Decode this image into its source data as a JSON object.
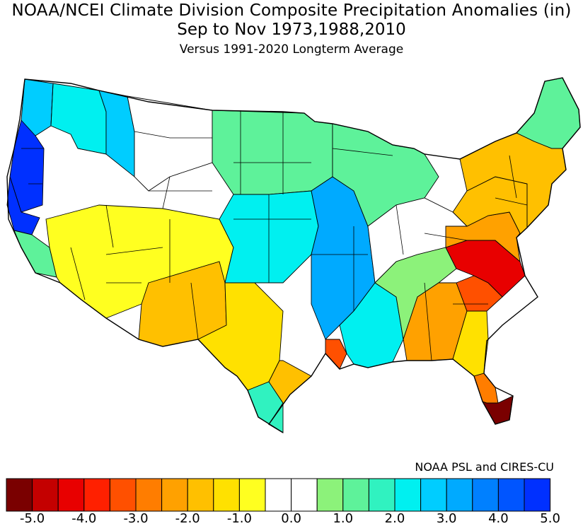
{
  "header": {
    "title": "NOAA/NCEI Climate Division Composite Precipitation Anomalies (in)",
    "subtitle": "Sep to Nov  1973,1988,2010",
    "baseline": "Versus 1991-2020 Longterm Average"
  },
  "credit": "NOAA PSL and CIRES-CU",
  "legend": {
    "unit": "in",
    "bins": [
      -5.5,
      -5.0,
      -4.5,
      -4.0,
      -3.5,
      -3.0,
      -2.5,
      -2.0,
      -1.5,
      -1.0,
      -0.5,
      0.0,
      0.5,
      1.0,
      1.5,
      2.0,
      2.5,
      3.0,
      3.5,
      4.0,
      4.5,
      5.0
    ],
    "colors": [
      "#7a0000",
      "#c40000",
      "#e80000",
      "#ff2000",
      "#ff5000",
      "#ff7d00",
      "#ffa100",
      "#ffc000",
      "#ffe100",
      "#ffff20",
      "#ffffff",
      "#ffffff",
      "#8cf27a",
      "#5ef29a",
      "#30f2c0",
      "#00f0f0",
      "#00cdff",
      "#00aaff",
      "#0080ff",
      "#0055ff",
      "#0030ff"
    ],
    "tick_labels": [
      "-5.0",
      "-4.0",
      "-3.0",
      "-2.0",
      "-1.0",
      "0.0",
      "1.0",
      "2.0",
      "3.0",
      "4.0",
      "5.0"
    ]
  },
  "regional_anomalies": [
    {
      "region": "Washington Coast",
      "anomaly": 2.5
    },
    {
      "region": "Oregon Coast",
      "anomaly": 5.0
    },
    {
      "region": "Northern California Coast",
      "anomaly": 4.5
    },
    {
      "region": "Sacramento Valley",
      "anomaly": 1.0
    },
    {
      "region": "Eastern Washington",
      "anomaly": 2.0
    },
    {
      "region": "Northern Idaho",
      "anomaly": 2.5
    },
    {
      "region": "Northern Rockies Montana",
      "anomaly": 0.0
    },
    {
      "region": "Southwest Desert",
      "anomaly": -1.0
    },
    {
      "region": "New Mexico",
      "anomaly": -2.0
    },
    {
      "region": "West Texas",
      "anomaly": -1.5
    },
    {
      "region": "South Texas",
      "anomaly": 1.5
    },
    {
      "region": "Upper Texas Coast",
      "anomaly": -2.0
    },
    {
      "region": "Louisiana",
      "anomaly": -3.5
    },
    {
      "region": "Northern Plains",
      "anomaly": 1.0
    },
    {
      "region": "Kansas Oklahoma",
      "anomaly": 2.0
    },
    {
      "region": "Arkansas Missouri",
      "anomaly": 3.0
    },
    {
      "region": "Mississippi Valley",
      "anomaly": 2.0
    },
    {
      "region": "Great Lakes",
      "anomaly": 1.0
    },
    {
      "region": "Ohio Valley",
      "anomaly": -0.5
    },
    {
      "region": "Appalachians",
      "anomaly": 0.5
    },
    {
      "region": "Georgia",
      "anomaly": -2.5
    },
    {
      "region": "South Carolina",
      "anomaly": -3.5
    },
    {
      "region": "North Carolina",
      "anomaly": -4.5
    },
    {
      "region": "Virginia",
      "anomaly": -2.5
    },
    {
      "region": "Mid-Atlantic",
      "anomaly": -2.0
    },
    {
      "region": "New England",
      "anomaly": -2.0
    },
    {
      "region": "North Florida",
      "anomaly": -1.5
    },
    {
      "region": "Central Florida",
      "anomaly": -3.0
    },
    {
      "region": "South Florida",
      "anomaly": -5.5
    },
    {
      "region": "Northern Maine",
      "anomaly": 1.0
    }
  ]
}
